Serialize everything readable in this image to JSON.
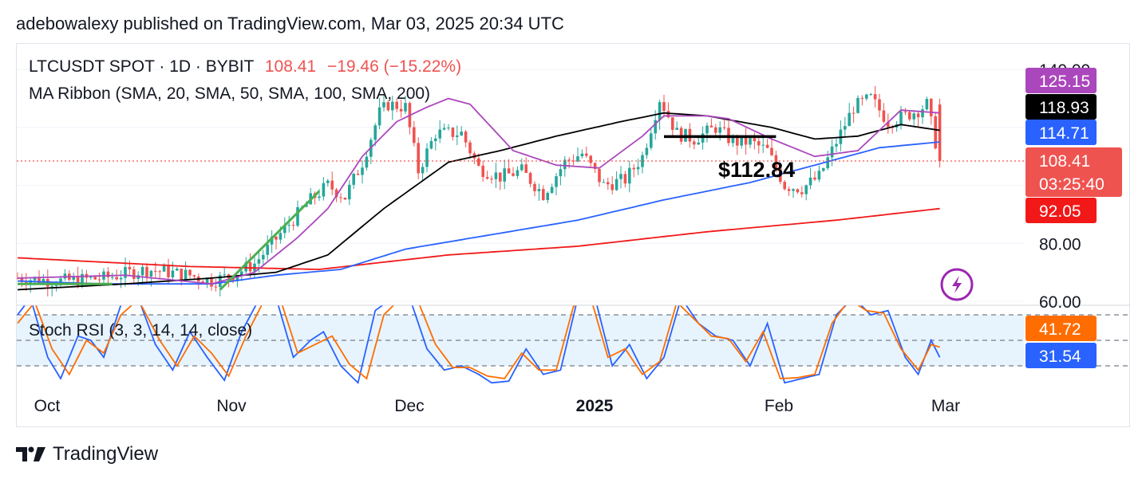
{
  "header": {
    "published_line": "adebowalexy published on TradingView.com, Mar 03, 2025 20:34 UTC"
  },
  "legend": {
    "symbol": "LTCUSDT SPOT · 1D · BYBIT",
    "price": "108.41",
    "change": "−19.46 (−15.22%)",
    "ma_ribbon": "MA Ribbon (SMA, 20, SMA, 50, SMA, 100, SMA, 200)",
    "stoch_rsi": "Stoch RSI (3, 3, 14, 14, close)"
  },
  "annotation": {
    "text": "$112.84"
  },
  "footer": {
    "brand": "TradingView"
  },
  "colors": {
    "up": "#26a69a",
    "down": "#ef5350",
    "sma20": "#ab47bc",
    "sma50": "#000000",
    "sma100": "#2962ff",
    "sma200": "#f21818",
    "trend": "#4caf50",
    "stoch_k": "#2962ff",
    "stoch_d": "#ff6d00",
    "stoch_band": "#e3f2fd"
  },
  "chart_data": [
    {
      "type": "candlestick",
      "title": "LTCUSDT SPOT · 1D · BYBIT",
      "x_ticks": [
        "Oct",
        "Nov",
        "Dec",
        "2025",
        "Feb",
        "Mar"
      ],
      "y_ticks": [
        "140.00",
        "80.00",
        "60.00"
      ],
      "ylim": [
        60,
        140
      ],
      "last_price": 108.41,
      "countdown": "03:25:40",
      "price_labels": [
        {
          "name": "SMA 20",
          "value": "125.15",
          "color": "#ab47bc"
        },
        {
          "name": "SMA 50",
          "value": "118.93",
          "color": "#000000"
        },
        {
          "name": "SMA 100",
          "value": "114.71",
          "color": "#2962ff"
        },
        {
          "name": "Last",
          "value": "108.41",
          "color": "#ef5350"
        },
        {
          "name": "SMA 200",
          "value": "92.05",
          "color": "#f21818"
        }
      ],
      "horizontal_line": 112.84,
      "anchors": {
        "sma20": [
          [
            0,
            68
          ],
          [
            25,
            69
          ],
          [
            45,
            66
          ],
          [
            55,
            70
          ],
          [
            65,
            82
          ],
          [
            72,
            92
          ],
          [
            80,
            110
          ],
          [
            88,
            122
          ],
          [
            95,
            127
          ],
          [
            100,
            130
          ],
          [
            105,
            128
          ],
          [
            115,
            112
          ],
          [
            125,
            107
          ],
          [
            135,
            106
          ],
          [
            145,
            117
          ],
          [
            150,
            124
          ],
          [
            160,
            124
          ],
          [
            165,
            123
          ],
          [
            175,
            116
          ],
          [
            185,
            110
          ],
          [
            195,
            112
          ],
          [
            205,
            126
          ],
          [
            214,
            125
          ]
        ],
        "sma50": [
          [
            0,
            64
          ],
          [
            25,
            66
          ],
          [
            45,
            68
          ],
          [
            60,
            70
          ],
          [
            72,
            76
          ],
          [
            85,
            92
          ],
          [
            100,
            108
          ],
          [
            112,
            112
          ],
          [
            125,
            117
          ],
          [
            140,
            122
          ],
          [
            150,
            125
          ],
          [
            160,
            124
          ],
          [
            175,
            120
          ],
          [
            185,
            116
          ],
          [
            195,
            117
          ],
          [
            205,
            121
          ],
          [
            214,
            119
          ]
        ],
        "sma100": [
          [
            0,
            67
          ],
          [
            20,
            66
          ],
          [
            45,
            66
          ],
          [
            60,
            69
          ],
          [
            75,
            71
          ],
          [
            90,
            78
          ],
          [
            110,
            83
          ],
          [
            130,
            88
          ],
          [
            150,
            95
          ],
          [
            170,
            101
          ],
          [
            185,
            107
          ],
          [
            200,
            113
          ],
          [
            214,
            115
          ]
        ],
        "sma200": [
          [
            0,
            75
          ],
          [
            40,
            72
          ],
          [
            70,
            71
          ],
          [
            100,
            76
          ],
          [
            130,
            79
          ],
          [
            160,
            84
          ],
          [
            190,
            88
          ],
          [
            214,
            92
          ]
        ],
        "close": [
          [
            0,
            68
          ],
          [
            10,
            67
          ],
          [
            20,
            68
          ],
          [
            30,
            71
          ],
          [
            40,
            69
          ],
          [
            45,
            67
          ],
          [
            50,
            69
          ],
          [
            55,
            73
          ],
          [
            62,
            85
          ],
          [
            68,
            95
          ],
          [
            72,
            100
          ],
          [
            76,
            96
          ],
          [
            80,
            108
          ],
          [
            84,
            125
          ],
          [
            86,
            128
          ],
          [
            90,
            127
          ],
          [
            93,
            105
          ],
          [
            97,
            118
          ],
          [
            103,
            118
          ],
          [
            107,
            106
          ],
          [
            112,
            103
          ],
          [
            117,
            105
          ],
          [
            122,
            97
          ],
          [
            127,
            108
          ],
          [
            131,
            111
          ],
          [
            136,
            100
          ],
          [
            141,
            102
          ],
          [
            145,
            110
          ],
          [
            149,
            130
          ],
          [
            153,
            118
          ],
          [
            157,
            116
          ],
          [
            162,
            120
          ],
          [
            166,
            115
          ],
          [
            170,
            115
          ],
          [
            174,
            112
          ],
          [
            178,
            100
          ],
          [
            182,
            99
          ],
          [
            186,
            103
          ],
          [
            190,
            115
          ],
          [
            194,
            127
          ],
          [
            198,
            130
          ],
          [
            202,
            122
          ],
          [
            206,
            124
          ],
          [
            209,
            126
          ],
          [
            211,
            128
          ],
          [
            214,
            108.41
          ]
        ]
      },
      "trendlines": [
        {
          "name": "base",
          "from": [
            0,
            66
          ],
          "to": [
            22,
            66
          ]
        },
        {
          "name": "rising",
          "from": [
            47,
            64
          ],
          "to": [
            70,
            98
          ]
        }
      ]
    },
    {
      "type": "line",
      "title": "Stoch RSI (3, 3, 14, 14, close)",
      "levels": [
        80,
        50,
        20
      ],
      "ylim": [
        0,
        100
      ],
      "series": [
        {
          "name": "K",
          "value": "31.54",
          "anchors": [
            [
              0,
              80
            ],
            [
              3,
              100
            ],
            [
              7,
              30
            ],
            [
              10,
              5
            ],
            [
              14,
              55
            ],
            [
              17,
              50
            ],
            [
              20,
              30
            ],
            [
              24,
              92
            ],
            [
              28,
              100
            ],
            [
              32,
              45
            ],
            [
              36,
              15
            ],
            [
              40,
              60
            ],
            [
              44,
              30
            ],
            [
              48,
              3
            ],
            [
              52,
              60
            ],
            [
              56,
              98
            ],
            [
              60,
              100
            ],
            [
              64,
              30
            ],
            [
              68,
              50
            ],
            [
              71,
              60
            ],
            [
              75,
              20
            ],
            [
              79,
              0
            ],
            [
              83,
              85
            ],
            [
              87,
              100
            ],
            [
              91,
              100
            ],
            [
              95,
              40
            ],
            [
              99,
              15
            ],
            [
              103,
              20
            ],
            [
              107,
              10
            ],
            [
              110,
              0
            ],
            [
              114,
              2
            ],
            [
              118,
              40
            ],
            [
              122,
              10
            ],
            [
              126,
              15
            ],
            [
              130,
              100
            ],
            [
              134,
              100
            ],
            [
              138,
              20
            ],
            [
              142,
              45
            ],
            [
              146,
              5
            ],
            [
              150,
              30
            ],
            [
              154,
              100
            ],
            [
              158,
              70
            ],
            [
              162,
              55
            ],
            [
              166,
              50
            ],
            [
              170,
              20
            ],
            [
              174,
              70
            ],
            [
              178,
              0
            ],
            [
              182,
              5
            ],
            [
              186,
              10
            ],
            [
              190,
              80
            ],
            [
              194,
              100
            ],
            [
              198,
              80
            ],
            [
              202,
              85
            ],
            [
              206,
              30
            ],
            [
              209,
              10
            ],
            [
              212,
              50
            ],
            [
              214,
              30
            ]
          ]
        },
        {
          "name": "D",
          "value": "41.72",
          "anchors": [
            [
              0,
              70
            ],
            [
              4,
              95
            ],
            [
              8,
              40
            ],
            [
              12,
              10
            ],
            [
              16,
              50
            ],
            [
              20,
              35
            ],
            [
              24,
              80
            ],
            [
              28,
              98
            ],
            [
              33,
              50
            ],
            [
              37,
              20
            ],
            [
              41,
              55
            ],
            [
              45,
              35
            ],
            [
              49,
              8
            ],
            [
              53,
              55
            ],
            [
              57,
              95
            ],
            [
              61,
              98
            ],
            [
              65,
              35
            ],
            [
              69,
              45
            ],
            [
              73,
              55
            ],
            [
              77,
              22
            ],
            [
              81,
              5
            ],
            [
              85,
              80
            ],
            [
              89,
              100
            ],
            [
              93,
              95
            ],
            [
              97,
              45
            ],
            [
              101,
              18
            ],
            [
              105,
              18
            ],
            [
              109,
              8
            ],
            [
              113,
              5
            ],
            [
              117,
              35
            ],
            [
              121,
              15
            ],
            [
              125,
              15
            ],
            [
              129,
              90
            ],
            [
              133,
              100
            ],
            [
              137,
              30
            ],
            [
              141,
              40
            ],
            [
              145,
              10
            ],
            [
              149,
              25
            ],
            [
              153,
              95
            ],
            [
              157,
              75
            ],
            [
              161,
              55
            ],
            [
              165,
              52
            ],
            [
              169,
              25
            ],
            [
              173,
              60
            ],
            [
              177,
              5
            ],
            [
              181,
              6
            ],
            [
              185,
              10
            ],
            [
              189,
              70
            ],
            [
              193,
              98
            ],
            [
              197,
              85
            ],
            [
              201,
              82
            ],
            [
              205,
              40
            ],
            [
              209,
              15
            ],
            [
              212,
              45
            ],
            [
              214,
              42
            ]
          ]
        }
      ]
    }
  ]
}
